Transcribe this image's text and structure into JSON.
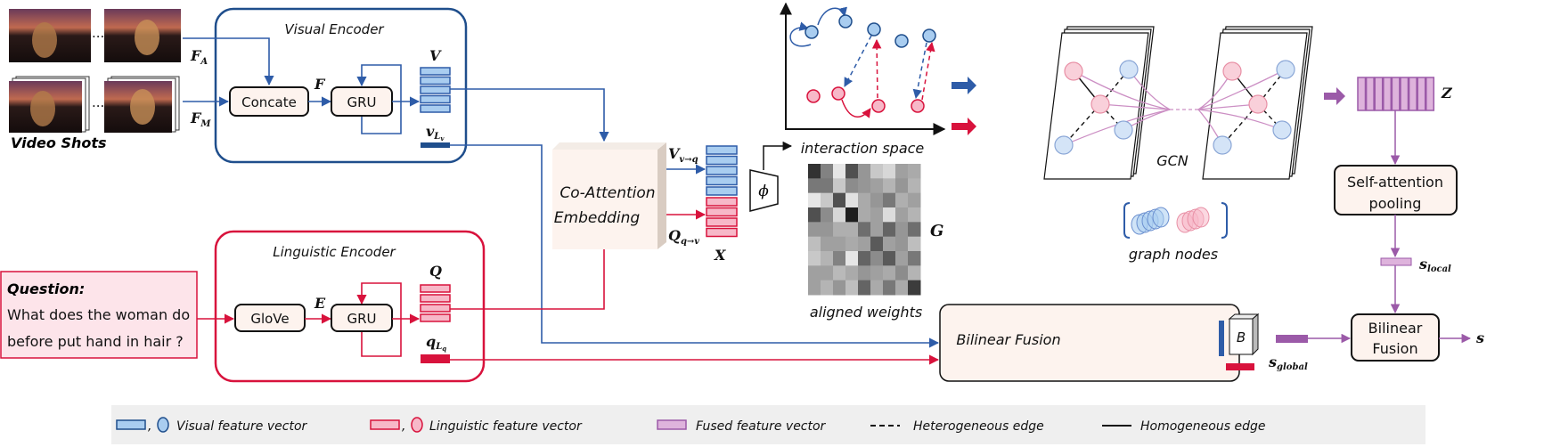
{
  "colors": {
    "visual": "#2e5ca8",
    "visual_dark": "#1f4e8c",
    "visual_fill": "#a9cdf0",
    "linguistic": "#d8123c",
    "linguistic_fill": "#f7b8c8",
    "fused": "#9b5aa8",
    "fused_fill": "#deb3dc",
    "box_fill": "#fdf3ee",
    "legend_bg": "#efefef"
  },
  "inputs": {
    "video_label": "Video Shots",
    "ellipsis": "...",
    "fa": {
      "main": "F",
      "sub": "A"
    },
    "fm": {
      "main": "F",
      "sub": "M"
    }
  },
  "visual_encoder": {
    "title": "Visual Encoder",
    "concate": "Concate",
    "gru": "GRU",
    "f_label": "F",
    "v_label": "V",
    "vl": {
      "main": "v",
      "sub": "L",
      "subsub": "v"
    }
  },
  "linguistic_encoder": {
    "title": "Linguistic Encoder",
    "glove": "GloVe",
    "gru": "GRU",
    "e_label": "E",
    "q_label": "Q",
    "ql": {
      "main": "q",
      "sub": "L",
      "subsub": "q"
    }
  },
  "question": {
    "heading": "Question:",
    "line1": "What does the woman do",
    "line2": "before put hand in hair ?"
  },
  "co_attention": {
    "line1": "Co-Attention",
    "line2": "Embedding",
    "v_out": {
      "main": "V",
      "sub": "v→q"
    },
    "q_out": {
      "main": "Q",
      "sub": "q→v"
    },
    "x_label": "X",
    "phi": "ϕ"
  },
  "interaction": {
    "label": "interaction space"
  },
  "aligned": {
    "label": "aligned weights",
    "g_label": "G",
    "gray_levels": [
      [
        50,
        130,
        230,
        80,
        150,
        200,
        215,
        160,
        170
      ],
      [
        120,
        120,
        200,
        140,
        150,
        160,
        180,
        150,
        180
      ],
      [
        230,
        200,
        80,
        225,
        170,
        150,
        120,
        175,
        160
      ],
      [
        80,
        140,
        215,
        30,
        170,
        160,
        220,
        160,
        180
      ],
      [
        150,
        150,
        175,
        175,
        110,
        160,
        100,
        150,
        110
      ],
      [
        190,
        160,
        160,
        170,
        160,
        90,
        160,
        150,
        190
      ],
      [
        200,
        180,
        130,
        230,
        100,
        140,
        90,
        160,
        120
      ],
      [
        160,
        160,
        185,
        170,
        150,
        160,
        170,
        140,
        180
      ],
      [
        160,
        180,
        150,
        190,
        100,
        170,
        120,
        170,
        60
      ]
    ]
  },
  "gcn": {
    "label": "GCN",
    "nodes_label": "graph nodes"
  },
  "z_label": "Z",
  "pooling": {
    "line1": "Self-attention",
    "line2": "pooling"
  },
  "s_local": {
    "main": "s",
    "sub": "local"
  },
  "bilinear_main": {
    "label": "Bilinear Fusion",
    "b_label": "B"
  },
  "s_global": {
    "main": "s",
    "sub": "global"
  },
  "bilinear_final": {
    "line1": "Bilinear",
    "line2": "Fusion"
  },
  "s_out": "s",
  "legend": {
    "comma": ",",
    "visual": "Visual feature vector",
    "linguistic": "Linguistic feature vector",
    "fused": "Fused feature vector",
    "hetero": "Heterogeneous edge",
    "homo": "Homogeneous edge"
  }
}
